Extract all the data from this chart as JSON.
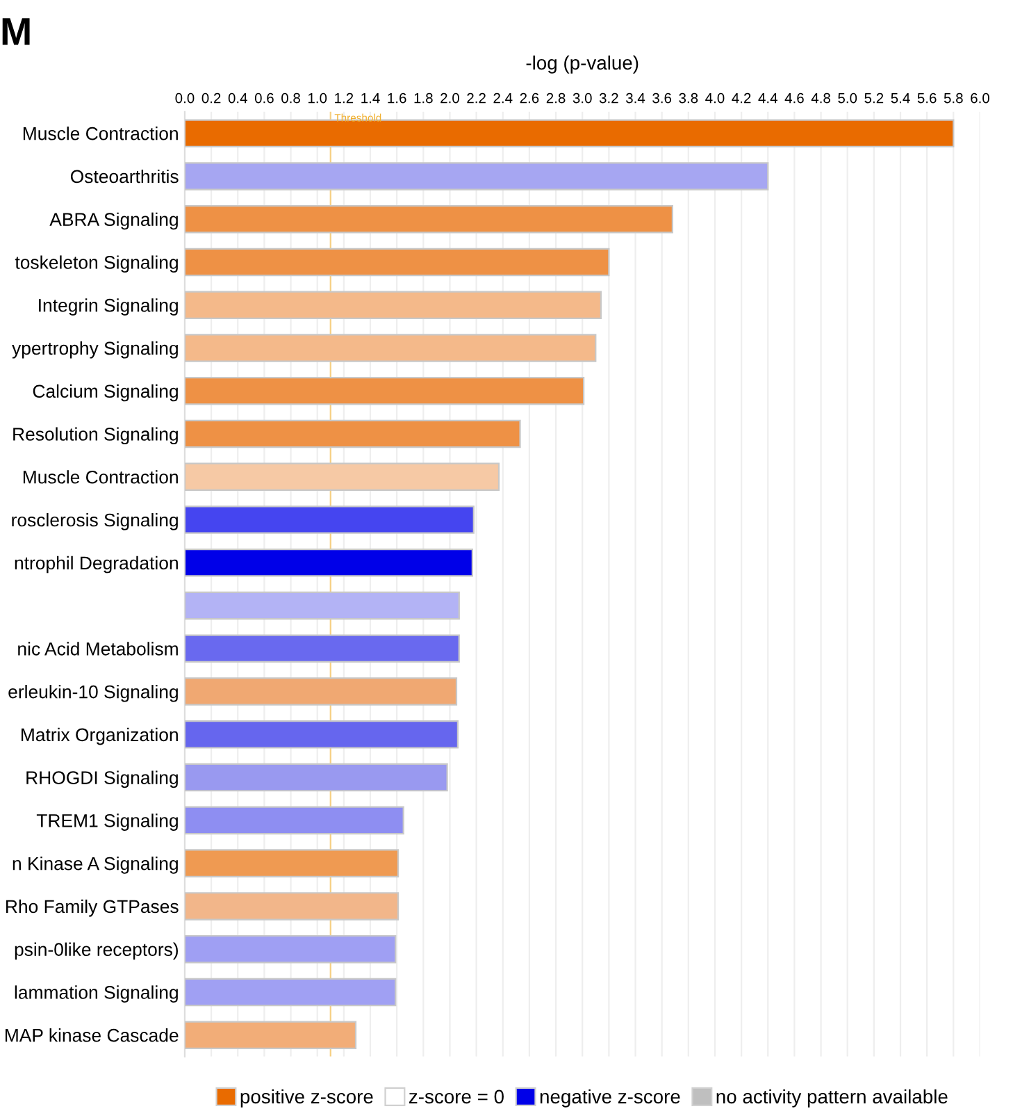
{
  "chart_data": {
    "type": "bar",
    "orientation": "horizontal",
    "title": "M",
    "xlabel": "-log (p-value)",
    "categories": [
      "Muscle Contraction",
      "Osteoarthritis",
      "ABRA Signaling",
      "toskeleton Signaling",
      "Integrin Signaling",
      "ypertrophy Signaling",
      "Calcium Signaling",
      "Resolution Signaling",
      "Muscle Contraction",
      "rosclerosis Signaling",
      "ntrophil Degradation",
      null,
      "nic Acid Metabolism",
      "erleukin-10 Signaling",
      "Matrix Organization",
      "RHOGDI Signaling",
      "TREM1 Signaling",
      "n Kinase A Signaling",
      "Rho Family GTPases",
      "psin-0like receptors)",
      "lammation Signaling",
      "MAP kinase Cascade"
    ],
    "series": [
      {
        "name": "positive z-score",
        "color": "#e96b00",
        "values": [
          5.8,
          null,
          3.68,
          3.2,
          3.14,
          3.1,
          3.01,
          2.53,
          2.37,
          null,
          null,
          null,
          null,
          2.05,
          null,
          null,
          null,
          1.61,
          1.61,
          null,
          null,
          1.29
        ],
        "colors": [
          "#e96b00",
          null,
          "#ee9145",
          "#ee9145",
          "#f4b98a",
          "#f4b98a",
          "#ee9145",
          "#ee9145",
          "#f6c9a5",
          null,
          null,
          null,
          null,
          "#f0a872",
          null,
          null,
          null,
          "#ef9a52",
          "#f2b68a",
          null,
          null,
          "#f2ad78"
        ]
      },
      {
        "name": "z-score = 0",
        "color": "#ffffff",
        "values": [
          null,
          null,
          null,
          null,
          null,
          null,
          null,
          null,
          null,
          null,
          null,
          null,
          null,
          null,
          null,
          null,
          null,
          null,
          null,
          null,
          null,
          null
        ]
      },
      {
        "name": "negative z-score",
        "color": "#0000e8",
        "values": [
          null,
          4.4,
          null,
          null,
          null,
          null,
          null,
          null,
          null,
          2.18,
          2.17,
          2.07,
          2.07,
          null,
          2.06,
          1.98,
          1.65,
          null,
          null,
          1.59,
          1.59,
          null
        ],
        "colors": [
          null,
          "#a6a6f2",
          null,
          null,
          null,
          null,
          null,
          null,
          null,
          "#4545f0",
          "#0000e8",
          "#b3b3f5",
          "#6969ef",
          null,
          "#6666ee",
          "#9999f0",
          "#8e8ef2",
          null,
          null,
          "#9f9ff3",
          "#a0a0f3",
          null
        ]
      },
      {
        "name": "no activity pattern available",
        "color": "#bfbfbf",
        "values": [
          null,
          null,
          null,
          null,
          null,
          null,
          null,
          null,
          null,
          null,
          null,
          null,
          null,
          null,
          null,
          null,
          null,
          null,
          null,
          null,
          null,
          null
        ]
      }
    ],
    "xlim": [
      0,
      6
    ],
    "xticks": [
      {
        "value": 0,
        "label": "0.0"
      },
      0.2,
      0.4,
      0.6,
      0.8,
      {
        "value": 1,
        "label": "1.0"
      },
      1.2,
      1.4,
      1.6,
      1.8,
      {
        "value": 2,
        "label": "2.0"
      },
      2.2,
      2.4,
      2.6,
      2.8,
      {
        "value": 3,
        "label": "3.0"
      },
      3.2,
      3.4,
      3.6,
      3.8,
      {
        "value": 4,
        "label": "4.0"
      },
      4.2,
      4.4,
      4.6,
      4.8,
      {
        "value": 5,
        "label": "5.0"
      },
      5.2,
      5.4,
      5.6,
      5.8,
      {
        "value": 6,
        "label": "6.0"
      }
    ],
    "ref_lines": [
      {
        "axis": "x",
        "value": 1.1,
        "label": "Threshold",
        "color": "#f0b030"
      }
    ],
    "grid": "x",
    "legend": "bottom"
  }
}
